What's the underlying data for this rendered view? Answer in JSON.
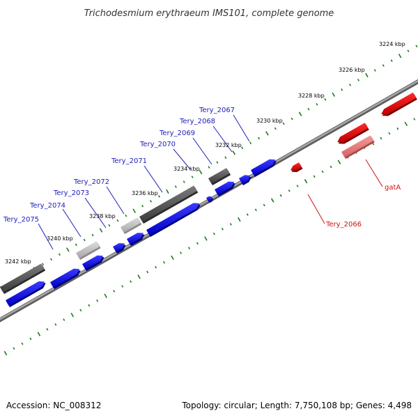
{
  "title": "Trichodesmium erythraeum IMS101, complete genome",
  "footer": {
    "accession": "Accession: NC_008312",
    "summary": "Topology: circular; Length: 7,750,108 bp; Genes: 4,498"
  },
  "colors": {
    "backbone": "#8c8c8c",
    "ticks": "#1a7a1a",
    "forward_gene": "#1111dd",
    "forward_label": "#1b1bbf",
    "reverse_gene": "#e00000",
    "reverse_label": "#cc1111",
    "feature_dark": "#5a5a5a",
    "feature_light": "#c4c4c4",
    "feature_pink": "#e87a7a"
  },
  "scale_labels": [
    "3242 kbp",
    "3240 kbp",
    "3238 kbp",
    "3236 kbp",
    "3234 kbp",
    "3232 kbp",
    "3230 kbp",
    "3228 kbp",
    "3226 kbp",
    "3224 kbp"
  ],
  "forward_gene_labels": [
    "Tery_2075",
    "Tery_2074",
    "Tery_2073",
    "Tery_2072",
    "Tery_2071",
    "Tery_2070",
    "Tery_2069",
    "Tery_2068",
    "Tery_2067"
  ],
  "reverse_gene_labels": [
    "Tery_2066",
    "gatA"
  ]
}
